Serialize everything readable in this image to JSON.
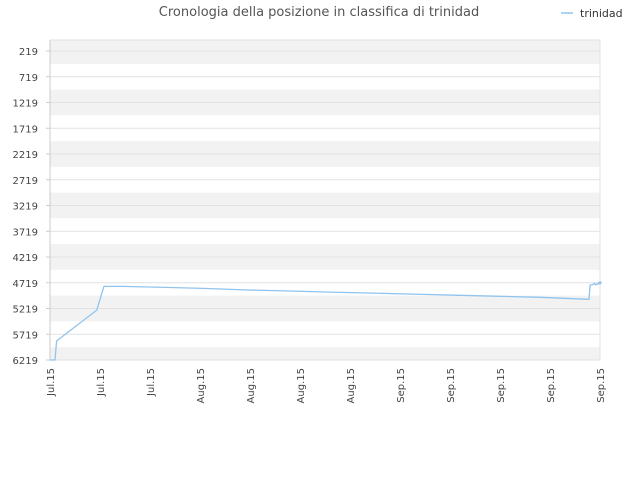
{
  "chart_data": {
    "type": "line",
    "title": "Cronologia della posizione in classifica di trinidad",
    "legend": {
      "position": "top-right",
      "entries": [
        "trinidad"
      ]
    },
    "grid": true,
    "y_axis": {
      "inverted": true,
      "ylim": [
        6219,
        219
      ],
      "ticks": [
        "219",
        "719",
        "1219",
        "1719",
        "2219",
        "2719",
        "3219",
        "3719",
        "4219",
        "4719",
        "5219",
        "5719",
        "6219"
      ],
      "tick_values": [
        219,
        719,
        1219,
        1719,
        2219,
        2719,
        3219,
        3719,
        4219,
        4719,
        5219,
        5719,
        6219
      ]
    },
    "x_axis": {
      "ticks": [
        "Jul.15",
        "Jul.15",
        "Jul.15",
        "Aug.15",
        "Aug.15",
        "Aug.15",
        "Aug.15",
        "Sep.15",
        "Sep.15",
        "Sep.15",
        "Sep.15",
        "Sep.15"
      ],
      "xlim": [
        0,
        1
      ]
    },
    "series": [
      {
        "name": "trinidad",
        "color": "#90c4ee",
        "x": [
          0.0,
          0.009,
          0.012,
          0.018,
          0.085,
          0.098,
          0.135,
          0.21,
          0.285,
          0.36,
          0.435,
          0.51,
          0.585,
          0.66,
          0.735,
          0.81,
          0.885,
          0.935,
          0.98,
          0.982,
          0.986,
          0.99,
          0.992,
          0.994,
          0.996,
          0.998,
          1.0
        ],
        "y": [
          6219,
          6219,
          5850,
          5800,
          5250,
          4790,
          4790,
          4810,
          4830,
          4860,
          4880,
          4900,
          4920,
          4940,
          4960,
          4980,
          5000,
          5020,
          5040,
          4760,
          4760,
          4730,
          4760,
          4740,
          4750,
          4720,
          4720
        ]
      }
    ]
  }
}
